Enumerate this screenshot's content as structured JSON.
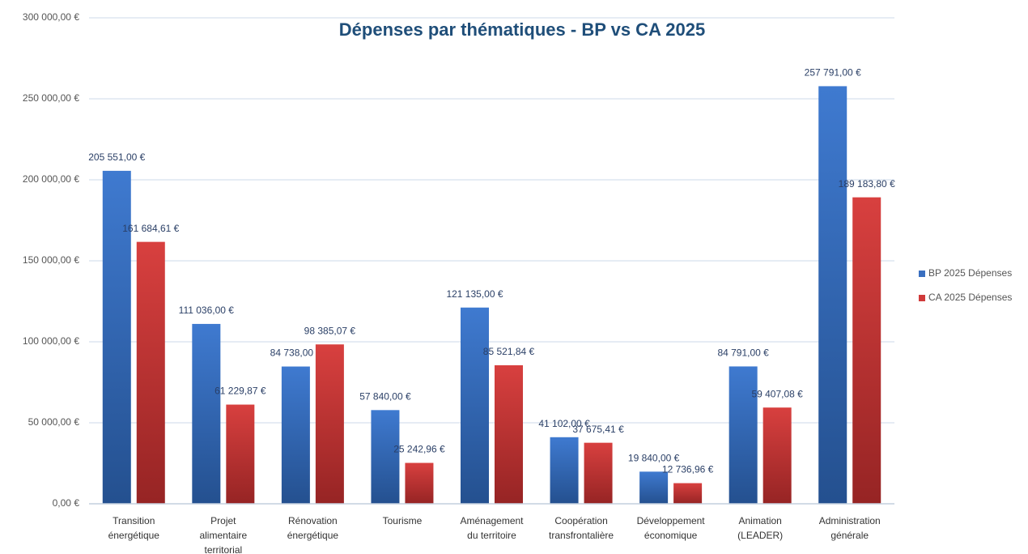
{
  "chart_data": {
    "type": "bar",
    "title": "Dépenses par thématiques - BP vs CA 2025",
    "categories": [
      [
        "Transition",
        "énergétique"
      ],
      [
        "Projet",
        "alimentaire",
        "territorial"
      ],
      [
        "Rénovation",
        "énergétique"
      ],
      [
        "Tourisme"
      ],
      [
        "Aménagement",
        "du territoire"
      ],
      [
        "Coopération",
        "transfrontalière"
      ],
      [
        "Développement",
        "économique"
      ],
      [
        "Animation",
        "(LEADER)"
      ],
      [
        "Administration",
        "générale"
      ]
    ],
    "series": [
      {
        "name": "BP 2025 Dépenses",
        "color": "#3a6fc0",
        "values": [
          205551,
          111036,
          84738,
          57840,
          121135,
          41102,
          19840,
          84791,
          257791
        ],
        "value_labels": [
          "205 551,00 €",
          "111 036,00 €",
          "84 738,00 €",
          "57 840,00 €",
          "121 135,00 €",
          "41 102,00 €",
          "19 840,00 €",
          "84 791,00 €",
          "257 791,00 €"
        ]
      },
      {
        "name": "CA 2025 Dépenses",
        "color": "#d03a3a",
        "values": [
          161684.61,
          61229.87,
          98385.07,
          25242.96,
          85521.84,
          37675.41,
          12736.96,
          59407.08,
          189183.8
        ],
        "value_labels": [
          "161 684,61 €",
          "61 229,87 €",
          "98 385,07 €",
          "25 242,96 €",
          "85 521,84 €",
          "37 675,41 €",
          "12 736,96 €",
          "59 407,08 €",
          "189 183,80 €"
        ]
      }
    ],
    "ylim": [
      0,
      300000
    ],
    "yticks": [
      {
        "value": 0,
        "label": "0,00 €"
      },
      {
        "value": 50000,
        "label": "50 000,00 €"
      },
      {
        "value": 100000,
        "label": "100 000,00 €"
      },
      {
        "value": 150000,
        "label": "150 000,00 €"
      },
      {
        "value": 200000,
        "label": "200 000,00 €"
      },
      {
        "value": 250000,
        "label": "250 000,00 €"
      },
      {
        "value": 300000,
        "label": "300 000,00 €"
      }
    ],
    "grid": true,
    "legend": "right"
  }
}
